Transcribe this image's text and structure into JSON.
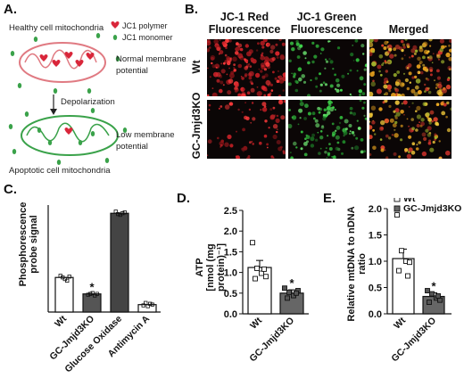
{
  "panels": {
    "A": "A.",
    "B": "B.",
    "C": "C.",
    "D": "D.",
    "E": "E."
  },
  "diagram": {
    "healthy_title": "Healthy cell mitochondria",
    "legend_polymer": "JC1 polymer",
    "legend_monomer": "JC1 monomer",
    "normal_potential_line1": "Normal membrane",
    "normal_potential_line2": "potential",
    "depolarization": "Depolarization",
    "low_potential_line1": "Low membrane",
    "low_potential_line2": "potential",
    "apoptotic_title": "Apoptotic cell mitochondria",
    "colors": {
      "polymer": "#d9263a",
      "monomer": "#3aa24a",
      "outline": "#e07a82"
    }
  },
  "micrographs": {
    "col_red_line1": "JC-1 Red",
    "col_red_line2": "Fluorescence",
    "col_green_line1": "JC-1 Green",
    "col_green_line2": "Fluorescence",
    "col_merged": "Merged",
    "row_wt": "Wt",
    "row_ko": "GC-Jmjd3KO"
  },
  "chart_data": [
    {
      "panel": "C",
      "type": "bar",
      "ylabel_line1": "Phosphorescence",
      "ylabel_line2": "probe signal",
      "categories": [
        "Wt",
        "GC-Jmjd3KO",
        "Glucose Oxidase",
        "Antimycin A"
      ],
      "values": [
        42,
        22,
        120,
        9
      ],
      "colors": [
        "#ffffff",
        "#555555",
        "#444444",
        "#ffffff"
      ],
      "annotations": [
        "",
        "*",
        "",
        ""
      ],
      "ylim": [
        0,
        130
      ]
    },
    {
      "panel": "D",
      "type": "bar",
      "ylabel_line1": "ATP",
      "ylabel_line2": "[nmol (mg protein)⁻¹]",
      "categories": [
        "Wt",
        "GC-Jmjd3KO"
      ],
      "values": [
        1.12,
        0.5
      ],
      "errors": [
        0.17,
        0.08
      ],
      "colors": [
        "#ffffff",
        "#666666"
      ],
      "annotations": [
        "",
        "*"
      ],
      "ylim": [
        0,
        2.5
      ],
      "yticks": [
        "0.0",
        "0.5",
        "1.0",
        "1.5",
        "2.0",
        "2.5"
      ]
    },
    {
      "panel": "E",
      "type": "bar",
      "ylabel_line1": "Relative mtDNA to nDNA",
      "ylabel_line2": "ratio",
      "legend": [
        "Wt",
        "GC-Jmjd3KO"
      ],
      "legend_position": "top-left",
      "categories": [
        "Wt",
        "GC-Jmjd3KO"
      ],
      "values": [
        1.05,
        0.33
      ],
      "errors": [
        0.18,
        0.07
      ],
      "colors": [
        "#ffffff",
        "#666666"
      ],
      "annotations": [
        "",
        "*"
      ],
      "ylim": [
        0,
        2.0
      ],
      "yticks": [
        "0.0",
        "0.5",
        "1.0",
        "1.5",
        "2.0"
      ]
    }
  ]
}
